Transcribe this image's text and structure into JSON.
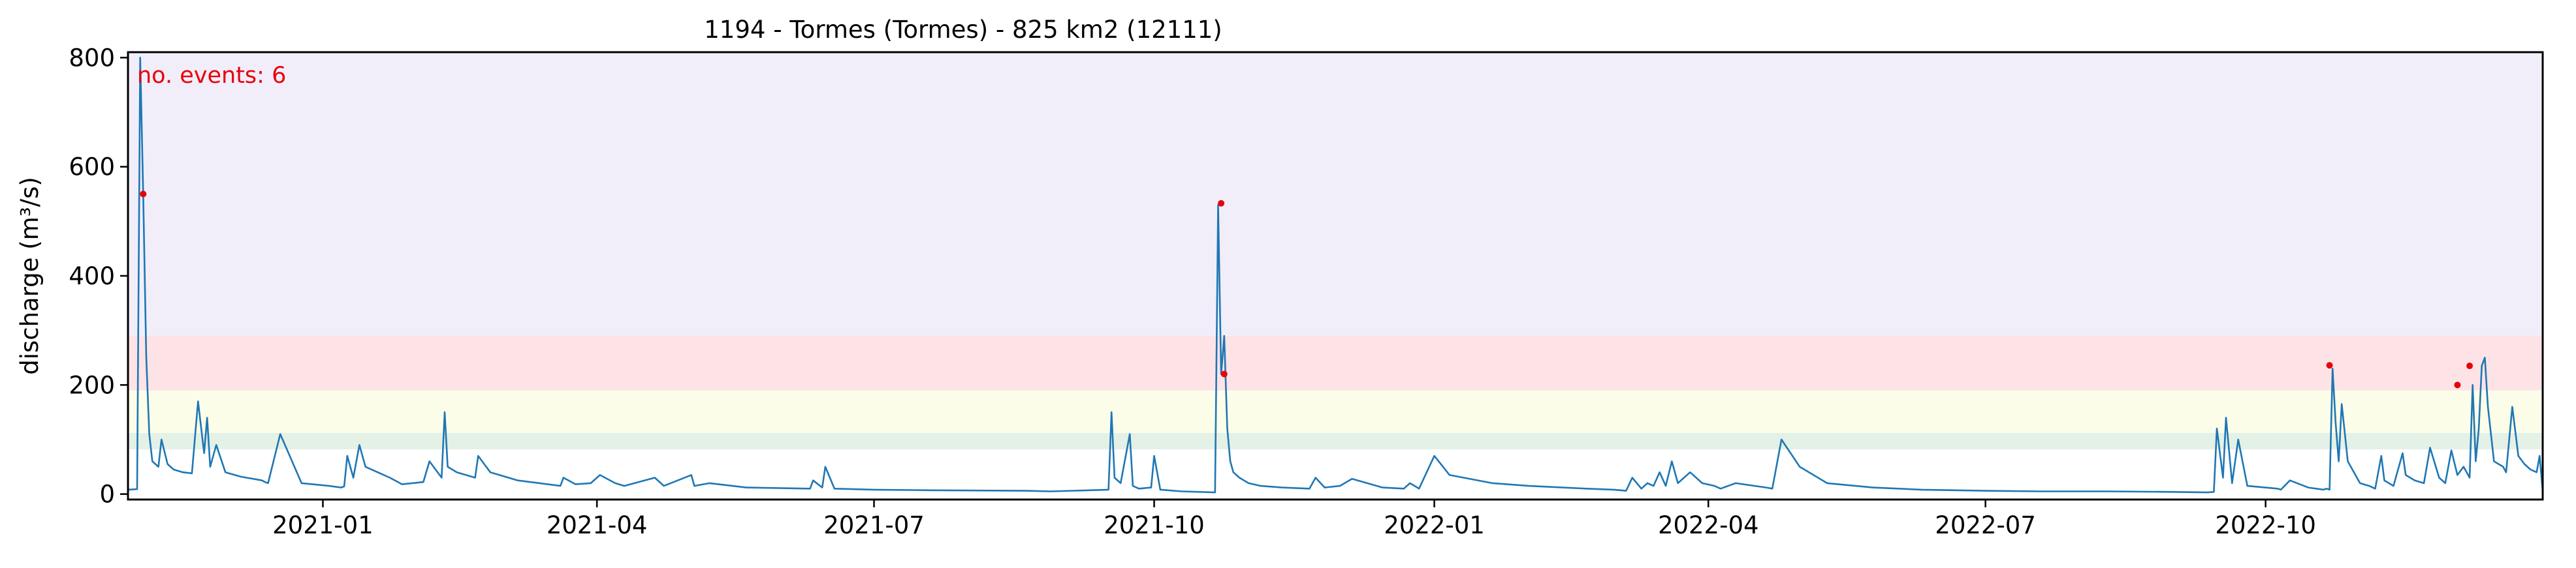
{
  "chart_data": {
    "type": "line",
    "title": "1194 - Tormes (Tormes) - 825 km2 (12111)",
    "xlabel": "",
    "ylabel": "discharge (m³/s)",
    "annotation": "no. events: 6",
    "xlim": [
      "2020-10-29",
      "2022-12-31"
    ],
    "ylim": [
      -10,
      810
    ],
    "x_ticks": [
      "2021-01",
      "2021-04",
      "2021-07",
      "2021-10",
      "2022-01",
      "2022-04",
      "2022-07",
      "2022-10"
    ],
    "y_ticks": [
      0,
      200,
      400,
      600,
      800
    ],
    "threshold_bands": [
      {
        "from": 82,
        "to": 112,
        "color": "#e3f1e6"
      },
      {
        "from": 112,
        "to": 190,
        "color": "#fcfde9"
      },
      {
        "from": 190,
        "to": 290,
        "color": "#fde3e6"
      },
      {
        "from": 290,
        "to": 810,
        "color": "#f1eef9"
      }
    ],
    "colors": {
      "line": "#1f77b4",
      "events": "#e8000b",
      "annotation": "#e8000b"
    },
    "series": [
      {
        "x": [
          "2020-10-29",
          "2020-11-01",
          "2020-11-02",
          "2020-11-03",
          "2020-11-04",
          "2020-11-05",
          "2020-11-06",
          "2020-11-08",
          "2020-11-09",
          "2020-11-11",
          "2020-11-13",
          "2020-11-16",
          "2020-11-19",
          "2020-11-21",
          "2020-11-23",
          "2020-11-24",
          "2020-11-25",
          "2020-11-27",
          "2020-11-30",
          "2020-12-05",
          "2020-12-12",
          "2020-12-13",
          "2020-12-14",
          "2020-12-18",
          "2020-12-25",
          "2021-01-03",
          "2021-01-07",
          "2021-01-08",
          "2021-01-09",
          "2021-01-11",
          "2021-01-13",
          "2021-01-15",
          "2021-01-19",
          "2021-01-23",
          "2021-01-27",
          "2021-02-03",
          "2021-02-05",
          "2021-02-09",
          "2021-02-10",
          "2021-02-11",
          "2021-02-14",
          "2021-02-20",
          "2021-02-21",
          "2021-02-25",
          "2021-03-06",
          "2021-03-20",
          "2021-03-21",
          "2021-03-25",
          "2021-03-30",
          "2021-04-02",
          "2021-04-07",
          "2021-04-10",
          "2021-04-20",
          "2021-04-23",
          "2021-05-02",
          "2021-05-03",
          "2021-05-08",
          "2021-05-20",
          "2021-06-10",
          "2021-06-11",
          "2021-06-14",
          "2021-06-15",
          "2021-06-18",
          "2021-07-01",
          "2021-07-20",
          "2021-08-20",
          "2021-08-28",
          "2021-09-16",
          "2021-09-17",
          "2021-09-18",
          "2021-09-20",
          "2021-09-23",
          "2021-09-24",
          "2021-09-26",
          "2021-09-30",
          "2021-10-01",
          "2021-10-03",
          "2021-10-10",
          "2021-10-21",
          "2021-10-22",
          "2021-10-23",
          "2021-10-24",
          "2021-10-25",
          "2021-10-26",
          "2021-10-27",
          "2021-10-29",
          "2021-11-01",
          "2021-11-05",
          "2021-11-12",
          "2021-11-21",
          "2021-11-23",
          "2021-11-26",
          "2021-12-01",
          "2021-12-05",
          "2021-12-15",
          "2021-12-22",
          "2021-12-24",
          "2021-12-27",
          "2022-01-01",
          "2022-01-06",
          "2022-01-20",
          "2022-02-01",
          "2022-02-20",
          "2022-03-01",
          "2022-03-05",
          "2022-03-07",
          "2022-03-10",
          "2022-03-12",
          "2022-03-14",
          "2022-03-16",
          "2022-03-18",
          "2022-03-20",
          "2022-03-22",
          "2022-03-26",
          "2022-03-30",
          "2022-04-03",
          "2022-04-05",
          "2022-04-10",
          "2022-04-20",
          "2022-04-22",
          "2022-04-25",
          "2022-05-01",
          "2022-05-10",
          "2022-05-25",
          "2022-06-10",
          "2022-07-01",
          "2022-07-20",
          "2022-08-10",
          "2022-08-31",
          "2022-09-12",
          "2022-09-14",
          "2022-09-15",
          "2022-09-17",
          "2022-09-18",
          "2022-09-20",
          "2022-09-22",
          "2022-09-25",
          "2022-10-05",
          "2022-10-06",
          "2022-10-09",
          "2022-10-15",
          "2022-10-20",
          "2022-10-21",
          "2022-10-22",
          "2022-10-23",
          "2022-10-24",
          "2022-10-25",
          "2022-10-26",
          "2022-10-28",
          "2022-10-31",
          "2022-11-01",
          "2022-11-04",
          "2022-11-06",
          "2022-11-08",
          "2022-11-09",
          "2022-11-12",
          "2022-11-15",
          "2022-11-16",
          "2022-11-19",
          "2022-11-22",
          "2022-11-24",
          "2022-11-27",
          "2022-11-29",
          "2022-12-01",
          "2022-12-03",
          "2022-12-05",
          "2022-12-07",
          "2022-12-08",
          "2022-12-09",
          "2022-12-10",
          "2022-12-11",
          "2022-12-12",
          "2022-12-13",
          "2022-12-15",
          "2022-12-18",
          "2022-12-19",
          "2022-12-21",
          "2022-12-23",
          "2022-12-25",
          "2022-12-27",
          "2022-12-29",
          "2022-12-30",
          "2022-12-31"
        ],
        "y": [
          8,
          9,
          800,
          550,
          250,
          110,
          60,
          50,
          100,
          55,
          45,
          40,
          38,
          170,
          75,
          140,
          50,
          90,
          40,
          32,
          25,
          22,
          20,
          110,
          20,
          15,
          12,
          14,
          70,
          30,
          90,
          50,
          40,
          30,
          18,
          22,
          60,
          30,
          150,
          50,
          40,
          30,
          70,
          40,
          25,
          15,
          30,
          18,
          20,
          35,
          20,
          15,
          30,
          15,
          35,
          15,
          20,
          12,
          10,
          25,
          12,
          50,
          10,
          8,
          7,
          6,
          5,
          8,
          150,
          30,
          20,
          110,
          15,
          10,
          12,
          70,
          8,
          5,
          3,
          530,
          220,
          290,
          120,
          60,
          40,
          30,
          20,
          15,
          12,
          10,
          30,
          12,
          15,
          28,
          12,
          10,
          20,
          10,
          70,
          35,
          20,
          15,
          10,
          8,
          6,
          30,
          10,
          20,
          15,
          40,
          15,
          60,
          20,
          40,
          20,
          15,
          10,
          20,
          12,
          10,
          100,
          50,
          20,
          12,
          8,
          6,
          5,
          5,
          4,
          3,
          4,
          120,
          30,
          140,
          20,
          100,
          15,
          10,
          8,
          25,
          12,
          8,
          10,
          8,
          230,
          130,
          60,
          165,
          60,
          30,
          20,
          15,
          10,
          70,
          25,
          15,
          75,
          35,
          25,
          20,
          85,
          30,
          20,
          80,
          35,
          50,
          30,
          200,
          60,
          120,
          235,
          250,
          160,
          60,
          50,
          40,
          160,
          70,
          55,
          45,
          40,
          70,
          5
        ]
      }
    ],
    "events": [
      {
        "x": "2020-11-03",
        "y": 550
      },
      {
        "x": "2021-10-23",
        "y": 533
      },
      {
        "x": "2021-10-24",
        "y": 220
      },
      {
        "x": "2022-10-22",
        "y": 236
      },
      {
        "x": "2022-12-03",
        "y": 200
      },
      {
        "x": "2022-12-07",
        "y": 235
      }
    ]
  }
}
